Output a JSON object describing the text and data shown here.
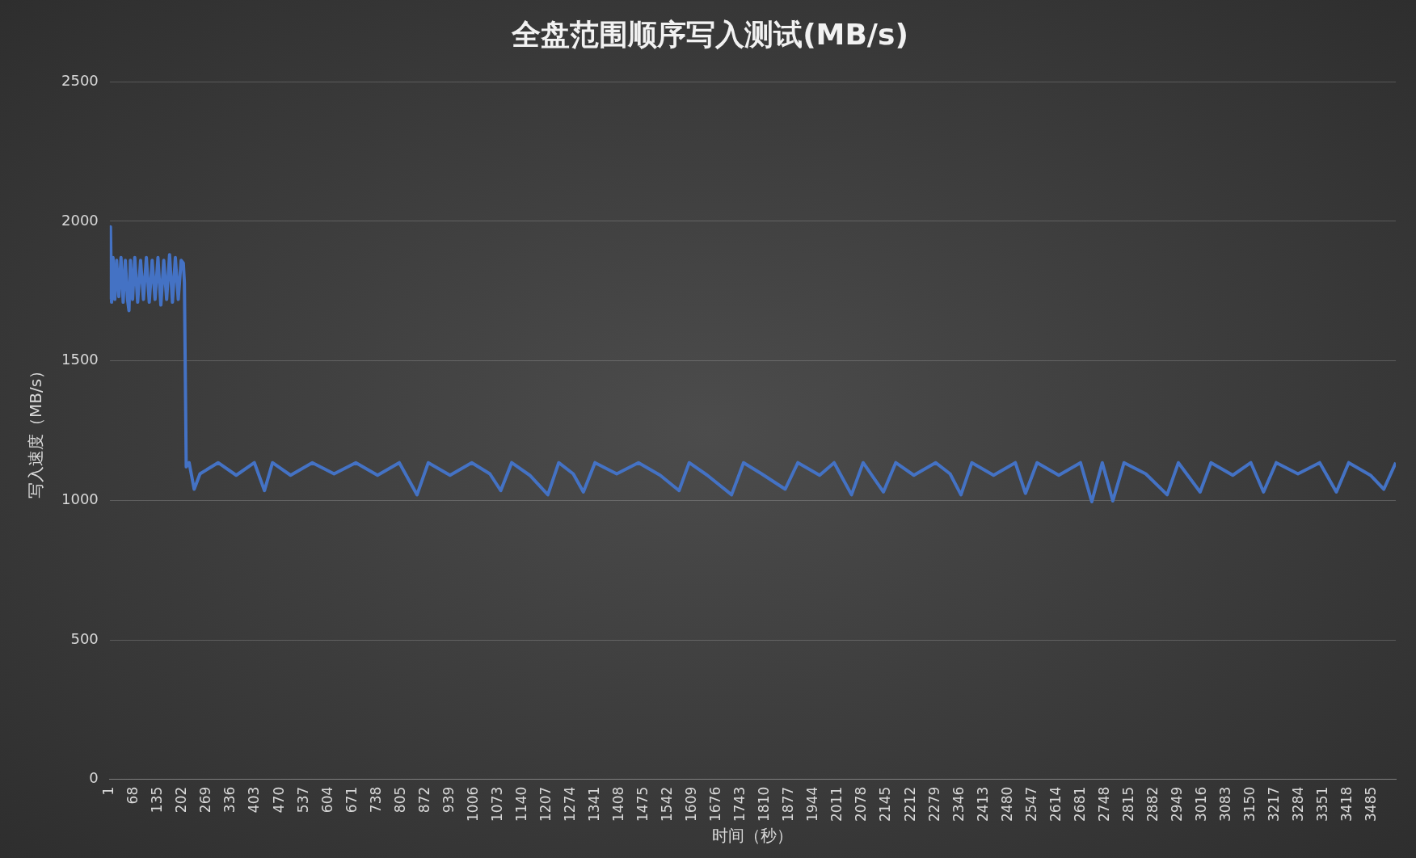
{
  "chart_data": {
    "type": "line",
    "title": "全盘范围顺序写入测试(MB/s)",
    "xlabel": "时间（秒）",
    "ylabel": "写入速度（MB/s）",
    "xlim": [
      1,
      3550
    ],
    "xticks": [
      1,
      68,
      135,
      202,
      269,
      336,
      403,
      470,
      537,
      604,
      671,
      738,
      805,
      872,
      939,
      1006,
      1073,
      1140,
      1207,
      1274,
      1341,
      1408,
      1475,
      1542,
      1609,
      1676,
      1743,
      1810,
      1877,
      1944,
      2011,
      2078,
      2145,
      2212,
      2279,
      2346,
      2413,
      2480,
      2547,
      2614,
      2681,
      2748,
      2815,
      2882,
      2949,
      3016,
      3083,
      3150,
      3217,
      3284,
      3351,
      3418,
      3485
    ],
    "ylim": [
      0,
      2500
    ],
    "yticks": [
      0,
      500,
      1000,
      1500,
      2000,
      2500
    ],
    "grid": "y",
    "legend": false,
    "marker": "none",
    "line_style": "solid",
    "series": [
      {
        "color": "#4472c4",
        "x": [
          1,
          3,
          6,
          10,
          15,
          20,
          26,
          32,
          38,
          44,
          50,
          54,
          58,
          64,
          70,
          78,
          86,
          94,
          102,
          110,
          118,
          126,
          134,
          142,
          150,
          158,
          166,
          174,
          182,
          190,
          198,
          204,
          207,
          212,
          220,
          234,
          250,
          300,
          350,
          400,
          428,
          450,
          500,
          560,
          620,
          680,
          740,
          800,
          849,
          880,
          940,
          1000,
          1050,
          1080,
          1110,
          1160,
          1210,
          1240,
          1280,
          1308,
          1340,
          1400,
          1460,
          1520,
          1572,
          1600,
          1650,
          1717,
          1750,
          1800,
          1865,
          1900,
          1960,
          2000,
          2048,
          2080,
          2136,
          2170,
          2220,
          2280,
          2320,
          2350,
          2380,
          2440,
          2500,
          2528,
          2560,
          2620,
          2680,
          2711,
          2740,
          2769,
          2800,
          2860,
          2919,
          2950,
          3010,
          3040,
          3100,
          3150,
          3185,
          3220,
          3280,
          3340,
          3386,
          3420,
          3480,
          3517,
          3550
        ],
        "values": [
          1720,
          1980,
          1710,
          1870,
          1720,
          1860,
          1730,
          1870,
          1710,
          1860,
          1720,
          1680,
          1860,
          1720,
          1870,
          1710,
          1860,
          1720,
          1870,
          1710,
          1860,
          1720,
          1870,
          1700,
          1860,
          1720,
          1880,
          1710,
          1870,
          1720,
          1860,
          1850,
          1780,
          1120,
          1135,
          1040,
          1095,
          1135,
          1090,
          1135,
          1035,
          1135,
          1090,
          1135,
          1095,
          1135,
          1090,
          1135,
          1020,
          1135,
          1090,
          1135,
          1095,
          1035,
          1135,
          1090,
          1020,
          1135,
          1095,
          1030,
          1135,
          1095,
          1135,
          1090,
          1035,
          1135,
          1090,
          1020,
          1135,
          1095,
          1040,
          1135,
          1090,
          1135,
          1020,
          1135,
          1030,
          1135,
          1090,
          1135,
          1095,
          1020,
          1135,
          1090,
          1135,
          1025,
          1135,
          1090,
          1135,
          995,
          1135,
          998,
          1135,
          1095,
          1020,
          1135,
          1030,
          1135,
          1090,
          1135,
          1030,
          1135,
          1095,
          1135,
          1030,
          1135,
          1090,
          1040,
          1135
        ]
      }
    ]
  }
}
